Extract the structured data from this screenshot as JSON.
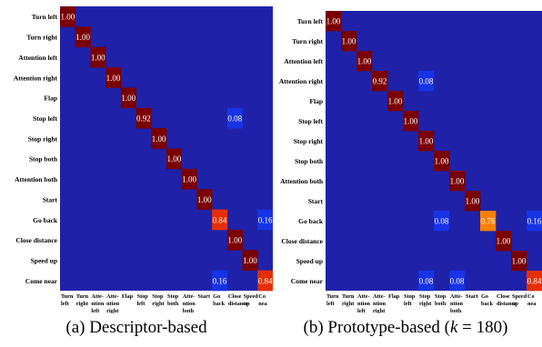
{
  "colors": {
    "background": "#1f22a8",
    "cell_high": "#7a0000",
    "cell_mid_high": "#e62e00",
    "cell_mid": "#ff8000",
    "cell_low": "#1733e6",
    "text_light": "#ffffff"
  },
  "chart_data": [
    {
      "type": "heatmap",
      "title": "",
      "caption": "(a) Descriptor-based",
      "rows": [
        "Turn left",
        "Turn right",
        "Attention left",
        "Attention right",
        "Flap",
        "Stop left",
        "Stop right",
        "Stop both",
        "Attention both",
        "Start",
        "Go back",
        "Close distance",
        "Speed up",
        "Come near"
      ],
      "columns": [
        [
          "Turn",
          "left"
        ],
        [
          "Turn",
          "right"
        ],
        [
          "Atte-",
          "ntion",
          "left"
        ],
        [
          "Atte-",
          "ntion",
          "right"
        ],
        [
          "Flap"
        ],
        [
          "Stop",
          "left"
        ],
        [
          "Stop",
          "right"
        ],
        [
          "Stop",
          "both"
        ],
        [
          "Atte-",
          "ntion",
          "both"
        ],
        [
          "Start"
        ],
        [
          "Go",
          "back"
        ],
        [
          "Close",
          "distance"
        ],
        [
          "Speed",
          "up"
        ],
        [
          "Co",
          "nea"
        ]
      ],
      "cells": [
        {
          "r": 0,
          "c": 0,
          "v": 1.0,
          "label": "1.00"
        },
        {
          "r": 1,
          "c": 1,
          "v": 1.0,
          "label": "1.00"
        },
        {
          "r": 2,
          "c": 2,
          "v": 1.0,
          "label": "1.00"
        },
        {
          "r": 3,
          "c": 3,
          "v": 1.0,
          "label": "1.00"
        },
        {
          "r": 4,
          "c": 4,
          "v": 1.0,
          "label": "1.00"
        },
        {
          "r": 5,
          "c": 5,
          "v": 0.92,
          "label": "0.92"
        },
        {
          "r": 5,
          "c": 11,
          "v": 0.08,
          "label": "0.08"
        },
        {
          "r": 6,
          "c": 6,
          "v": 1.0,
          "label": "1.00"
        },
        {
          "r": 7,
          "c": 7,
          "v": 1.0,
          "label": "1.00"
        },
        {
          "r": 8,
          "c": 8,
          "v": 1.0,
          "label": "1.00"
        },
        {
          "r": 9,
          "c": 9,
          "v": 1.0,
          "label": "1.00"
        },
        {
          "r": 10,
          "c": 10,
          "v": 0.84,
          "label": "0.84"
        },
        {
          "r": 10,
          "c": 13,
          "v": 0.16,
          "label": "0.16"
        },
        {
          "r": 11,
          "c": 11,
          "v": 1.0,
          "label": "1.00"
        },
        {
          "r": 12,
          "c": 12,
          "v": 1.0,
          "label": "1.00"
        },
        {
          "r": 13,
          "c": 10,
          "v": 0.16,
          "label": "0.16"
        },
        {
          "r": 13,
          "c": 13,
          "v": 0.84,
          "label": "0.84"
        }
      ]
    },
    {
      "type": "heatmap",
      "title": "",
      "caption": "(b) Prototype-based (k = 180)",
      "rows": [
        "Turn left",
        "Turn right",
        "Attention left",
        "Attention right",
        "Flap",
        "Stop left",
        "Stop right",
        "Stop both",
        "Attention both",
        "Start",
        "Go back",
        "Close distance",
        "Speed up",
        "Come near"
      ],
      "columns": [
        [
          "Turn",
          "left"
        ],
        [
          "Turn",
          "right"
        ],
        [
          "Atte-",
          "ntion",
          "left"
        ],
        [
          "Atte-",
          "ntion",
          "right"
        ],
        [
          "Flap"
        ],
        [
          "Stop",
          "left"
        ],
        [
          "Stop",
          "right"
        ],
        [
          "Stop",
          "both"
        ],
        [
          "Atte-",
          "ntion",
          "both"
        ],
        [
          "Start"
        ],
        [
          "Go",
          "back"
        ],
        [
          "Close",
          "distance"
        ],
        [
          "Speed",
          "up"
        ],
        [
          "Co",
          "nea"
        ]
      ],
      "cells": [
        {
          "r": 0,
          "c": 0,
          "v": 1.0,
          "label": "1.00"
        },
        {
          "r": 1,
          "c": 1,
          "v": 1.0,
          "label": "1.00"
        },
        {
          "r": 2,
          "c": 2,
          "v": 1.0,
          "label": "1.00"
        },
        {
          "r": 3,
          "c": 3,
          "v": 0.92,
          "label": "0.92"
        },
        {
          "r": 3,
          "c": 6,
          "v": 0.08,
          "label": "0.08"
        },
        {
          "r": 4,
          "c": 4,
          "v": 1.0,
          "label": "1.00"
        },
        {
          "r": 5,
          "c": 5,
          "v": 1.0,
          "label": "1.00"
        },
        {
          "r": 6,
          "c": 6,
          "v": 1.0,
          "label": "1.00"
        },
        {
          "r": 7,
          "c": 7,
          "v": 1.0,
          "label": "1.00"
        },
        {
          "r": 8,
          "c": 8,
          "v": 1.0,
          "label": "1.00"
        },
        {
          "r": 9,
          "c": 9,
          "v": 1.0,
          "label": "1.00"
        },
        {
          "r": 10,
          "c": 7,
          "v": 0.08,
          "label": "0.08"
        },
        {
          "r": 10,
          "c": 10,
          "v": 0.76,
          "label": "0.76"
        },
        {
          "r": 10,
          "c": 13,
          "v": 0.16,
          "label": "0.16"
        },
        {
          "r": 11,
          "c": 11,
          "v": 1.0,
          "label": "1.00"
        },
        {
          "r": 12,
          "c": 12,
          "v": 1.0,
          "label": "1.00"
        },
        {
          "r": 13,
          "c": 6,
          "v": 0.08,
          "label": "0.08"
        },
        {
          "r": 13,
          "c": 8,
          "v": 0.08,
          "label": "0.08"
        },
        {
          "r": 13,
          "c": 13,
          "v": 0.84,
          "label": "0.84"
        }
      ]
    }
  ]
}
